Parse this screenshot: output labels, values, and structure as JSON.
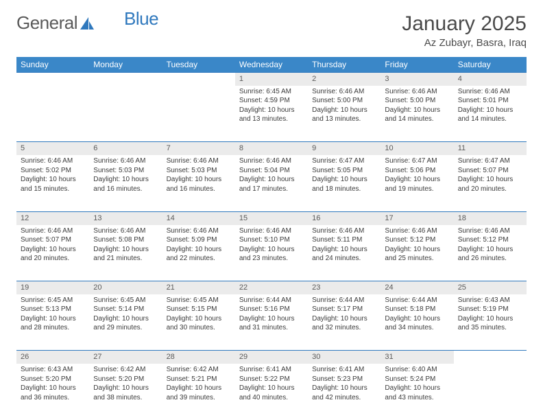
{
  "brand": {
    "part1": "General",
    "part2": "Blue"
  },
  "title": "January 2025",
  "location": "Az Zubayr, Basra, Iraq",
  "dayHeaders": [
    "Sunday",
    "Monday",
    "Tuesday",
    "Wednesday",
    "Thursday",
    "Friday",
    "Saturday"
  ],
  "colors": {
    "headerBg": "#3a87c8",
    "headerText": "#ffffff",
    "rule": "#2f78bd",
    "dayBg": "#ebebeb",
    "text": "#3a3a3a",
    "logoGray": "#5a5a5a",
    "logoBlue": "#2f78bd",
    "pageBg": "#ffffff"
  },
  "weeks": [
    [
      null,
      null,
      null,
      {
        "n": "1",
        "sr": "Sunrise: 6:45 AM",
        "ss": "Sunset: 4:59 PM",
        "dl1": "Daylight: 10 hours",
        "dl2": "and 13 minutes."
      },
      {
        "n": "2",
        "sr": "Sunrise: 6:46 AM",
        "ss": "Sunset: 5:00 PM",
        "dl1": "Daylight: 10 hours",
        "dl2": "and 13 minutes."
      },
      {
        "n": "3",
        "sr": "Sunrise: 6:46 AM",
        "ss": "Sunset: 5:00 PM",
        "dl1": "Daylight: 10 hours",
        "dl2": "and 14 minutes."
      },
      {
        "n": "4",
        "sr": "Sunrise: 6:46 AM",
        "ss": "Sunset: 5:01 PM",
        "dl1": "Daylight: 10 hours",
        "dl2": "and 14 minutes."
      }
    ],
    [
      {
        "n": "5",
        "sr": "Sunrise: 6:46 AM",
        "ss": "Sunset: 5:02 PM",
        "dl1": "Daylight: 10 hours",
        "dl2": "and 15 minutes."
      },
      {
        "n": "6",
        "sr": "Sunrise: 6:46 AM",
        "ss": "Sunset: 5:03 PM",
        "dl1": "Daylight: 10 hours",
        "dl2": "and 16 minutes."
      },
      {
        "n": "7",
        "sr": "Sunrise: 6:46 AM",
        "ss": "Sunset: 5:03 PM",
        "dl1": "Daylight: 10 hours",
        "dl2": "and 16 minutes."
      },
      {
        "n": "8",
        "sr": "Sunrise: 6:46 AM",
        "ss": "Sunset: 5:04 PM",
        "dl1": "Daylight: 10 hours",
        "dl2": "and 17 minutes."
      },
      {
        "n": "9",
        "sr": "Sunrise: 6:47 AM",
        "ss": "Sunset: 5:05 PM",
        "dl1": "Daylight: 10 hours",
        "dl2": "and 18 minutes."
      },
      {
        "n": "10",
        "sr": "Sunrise: 6:47 AM",
        "ss": "Sunset: 5:06 PM",
        "dl1": "Daylight: 10 hours",
        "dl2": "and 19 minutes."
      },
      {
        "n": "11",
        "sr": "Sunrise: 6:47 AM",
        "ss": "Sunset: 5:07 PM",
        "dl1": "Daylight: 10 hours",
        "dl2": "and 20 minutes."
      }
    ],
    [
      {
        "n": "12",
        "sr": "Sunrise: 6:46 AM",
        "ss": "Sunset: 5:07 PM",
        "dl1": "Daylight: 10 hours",
        "dl2": "and 20 minutes."
      },
      {
        "n": "13",
        "sr": "Sunrise: 6:46 AM",
        "ss": "Sunset: 5:08 PM",
        "dl1": "Daylight: 10 hours",
        "dl2": "and 21 minutes."
      },
      {
        "n": "14",
        "sr": "Sunrise: 6:46 AM",
        "ss": "Sunset: 5:09 PM",
        "dl1": "Daylight: 10 hours",
        "dl2": "and 22 minutes."
      },
      {
        "n": "15",
        "sr": "Sunrise: 6:46 AM",
        "ss": "Sunset: 5:10 PM",
        "dl1": "Daylight: 10 hours",
        "dl2": "and 23 minutes."
      },
      {
        "n": "16",
        "sr": "Sunrise: 6:46 AM",
        "ss": "Sunset: 5:11 PM",
        "dl1": "Daylight: 10 hours",
        "dl2": "and 24 minutes."
      },
      {
        "n": "17",
        "sr": "Sunrise: 6:46 AM",
        "ss": "Sunset: 5:12 PM",
        "dl1": "Daylight: 10 hours",
        "dl2": "and 25 minutes."
      },
      {
        "n": "18",
        "sr": "Sunrise: 6:46 AM",
        "ss": "Sunset: 5:12 PM",
        "dl1": "Daylight: 10 hours",
        "dl2": "and 26 minutes."
      }
    ],
    [
      {
        "n": "19",
        "sr": "Sunrise: 6:45 AM",
        "ss": "Sunset: 5:13 PM",
        "dl1": "Daylight: 10 hours",
        "dl2": "and 28 minutes."
      },
      {
        "n": "20",
        "sr": "Sunrise: 6:45 AM",
        "ss": "Sunset: 5:14 PM",
        "dl1": "Daylight: 10 hours",
        "dl2": "and 29 minutes."
      },
      {
        "n": "21",
        "sr": "Sunrise: 6:45 AM",
        "ss": "Sunset: 5:15 PM",
        "dl1": "Daylight: 10 hours",
        "dl2": "and 30 minutes."
      },
      {
        "n": "22",
        "sr": "Sunrise: 6:44 AM",
        "ss": "Sunset: 5:16 PM",
        "dl1": "Daylight: 10 hours",
        "dl2": "and 31 minutes."
      },
      {
        "n": "23",
        "sr": "Sunrise: 6:44 AM",
        "ss": "Sunset: 5:17 PM",
        "dl1": "Daylight: 10 hours",
        "dl2": "and 32 minutes."
      },
      {
        "n": "24",
        "sr": "Sunrise: 6:44 AM",
        "ss": "Sunset: 5:18 PM",
        "dl1": "Daylight: 10 hours",
        "dl2": "and 34 minutes."
      },
      {
        "n": "25",
        "sr": "Sunrise: 6:43 AM",
        "ss": "Sunset: 5:19 PM",
        "dl1": "Daylight: 10 hours",
        "dl2": "and 35 minutes."
      }
    ],
    [
      {
        "n": "26",
        "sr": "Sunrise: 6:43 AM",
        "ss": "Sunset: 5:20 PM",
        "dl1": "Daylight: 10 hours",
        "dl2": "and 36 minutes."
      },
      {
        "n": "27",
        "sr": "Sunrise: 6:42 AM",
        "ss": "Sunset: 5:20 PM",
        "dl1": "Daylight: 10 hours",
        "dl2": "and 38 minutes."
      },
      {
        "n": "28",
        "sr": "Sunrise: 6:42 AM",
        "ss": "Sunset: 5:21 PM",
        "dl1": "Daylight: 10 hours",
        "dl2": "and 39 minutes."
      },
      {
        "n": "29",
        "sr": "Sunrise: 6:41 AM",
        "ss": "Sunset: 5:22 PM",
        "dl1": "Daylight: 10 hours",
        "dl2": "and 40 minutes."
      },
      {
        "n": "30",
        "sr": "Sunrise: 6:41 AM",
        "ss": "Sunset: 5:23 PM",
        "dl1": "Daylight: 10 hours",
        "dl2": "and 42 minutes."
      },
      {
        "n": "31",
        "sr": "Sunrise: 6:40 AM",
        "ss": "Sunset: 5:24 PM",
        "dl1": "Daylight: 10 hours",
        "dl2": "and 43 minutes."
      },
      null
    ]
  ]
}
